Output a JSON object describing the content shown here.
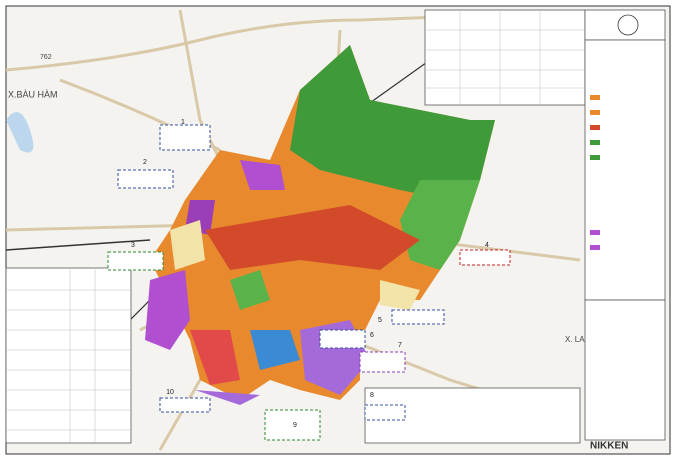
{
  "map": {
    "place_labels": [
      "X.BÀU HÀM",
      "X. LA"
    ],
    "road_label": "762",
    "brand": "NIKKEN",
    "callouts": [
      "1",
      "2",
      "3",
      "4",
      "5",
      "6",
      "7",
      "8",
      "9",
      "10"
    ]
  }
}
